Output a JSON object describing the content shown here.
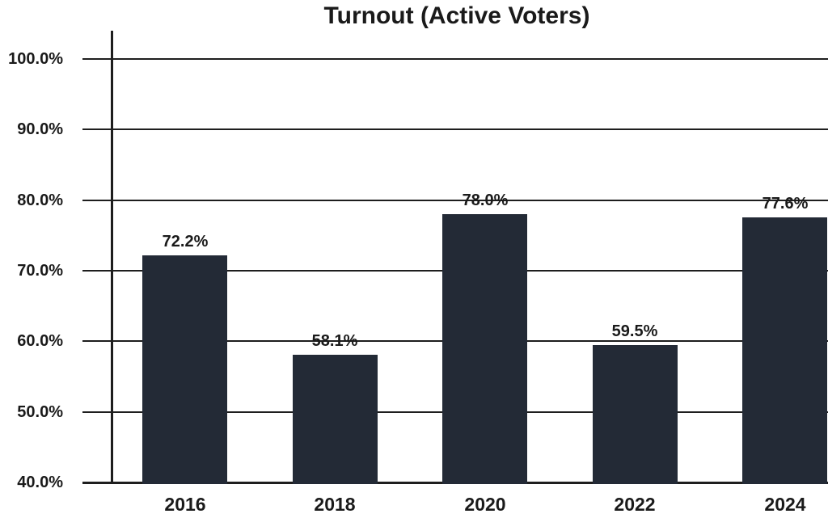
{
  "chart_data": {
    "type": "bar",
    "title": "Turnout (Active Voters)",
    "categories": [
      "2016",
      "2018",
      "2020",
      "2022",
      "2024"
    ],
    "values": [
      72.2,
      58.1,
      78.0,
      59.5,
      77.6
    ],
    "value_labels": [
      "72.2%",
      "58.1%",
      "78.0%",
      "59.5%",
      "77.6%"
    ],
    "xlabel": "",
    "ylabel": "",
    "ylim": [
      40,
      100
    ],
    "yticks": [
      {
        "value": 100,
        "label": "100.0%"
      },
      {
        "value": 90,
        "label": "90.0%"
      },
      {
        "value": 80,
        "label": "80.0%"
      },
      {
        "value": 70,
        "label": "70.0%"
      },
      {
        "value": 60,
        "label": "60.0%"
      },
      {
        "value": 50,
        "label": "50.0%"
      },
      {
        "value": 40,
        "label": "40.0%"
      }
    ],
    "grid": "horizontal-on",
    "legend": "none",
    "colors": {
      "bar": "#232A36",
      "axis": "#1e1e1e",
      "text": "#1a1a1a",
      "background": "#ffffff"
    }
  }
}
